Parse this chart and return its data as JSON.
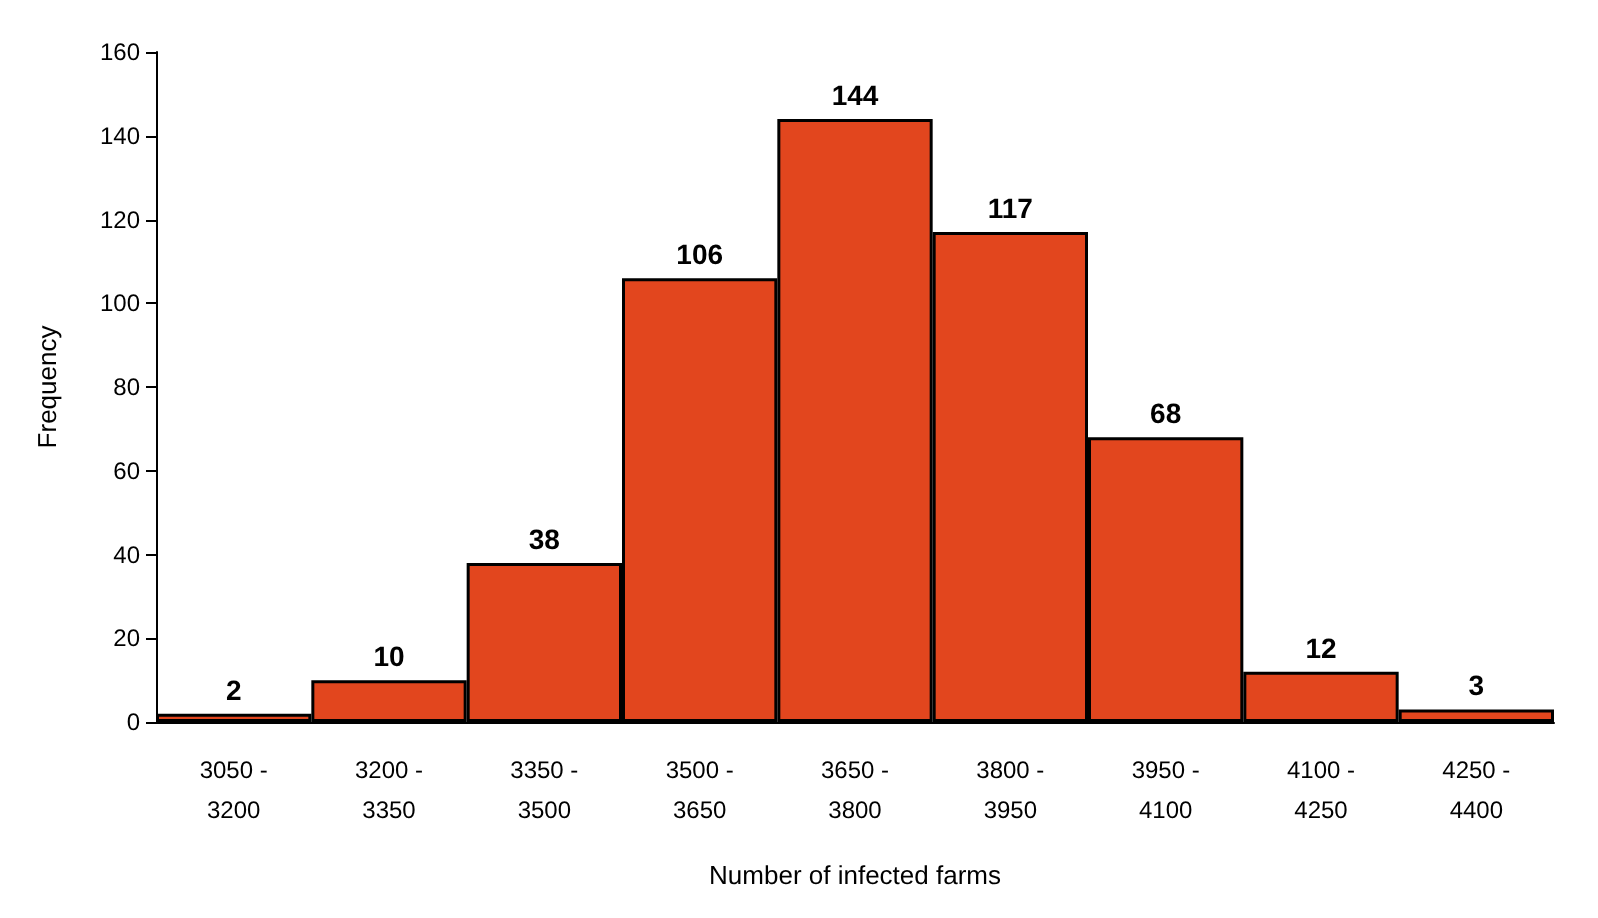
{
  "chart_data": {
    "type": "bar",
    "xlabel": "Number of infected farms",
    "ylabel": "Frequency",
    "categories": [
      "3050 - 3200",
      "3200 - 3350",
      "3350 - 3500",
      "3500 - 3650",
      "3650 - 3800",
      "3800 - 3950",
      "3950 - 4100",
      "4100 - 4250",
      "4250 - 4400"
    ],
    "values": [
      2,
      10,
      38,
      106,
      144,
      117,
      68,
      12,
      3
    ],
    "color": "#e2461e",
    "ylim": [
      0,
      160
    ],
    "yticks": [
      0,
      20,
      40,
      60,
      80,
      100,
      120,
      140,
      160
    ],
    "grid": false,
    "data_labels": true
  }
}
